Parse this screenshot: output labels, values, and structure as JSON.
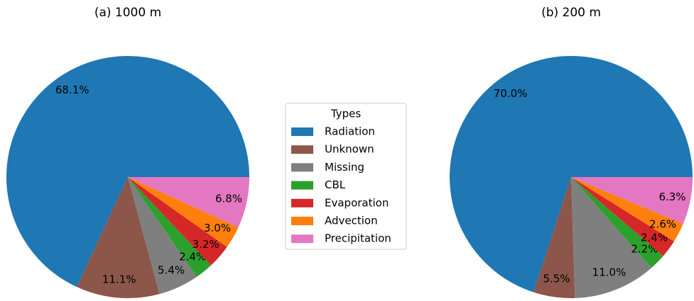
{
  "chart_data": [
    {
      "type": "pie",
      "title": "(a) 1000 m",
      "categories": [
        "Radiation",
        "Unknown",
        "Missing",
        "CBL",
        "Evaporation",
        "Advection",
        "Precipitation"
      ],
      "values": [
        68.1,
        11.1,
        5.4,
        2.4,
        3.2,
        3.0,
        6.8
      ],
      "value_labels": [
        "68.1%",
        "11.1%",
        "5.4%",
        "2.4%",
        "3.2%",
        "3.0%",
        "6.8%"
      ],
      "colors": [
        "#1f77b4",
        "#8c564b",
        "#7f7f7f",
        "#2ca02c",
        "#d62728",
        "#ff7f0e",
        "#e377c2"
      ],
      "legend_title": "Types"
    },
    {
      "type": "pie",
      "title": "(b) 200 m",
      "categories": [
        "Radiation",
        "Unknown",
        "Missing",
        "CBL",
        "Evaporation",
        "Advection",
        "Precipitation"
      ],
      "values": [
        70.0,
        5.5,
        11.0,
        2.2,
        2.4,
        2.6,
        6.3
      ],
      "value_labels": [
        "70.0%",
        "5.5%",
        "11.0%",
        "2.2%",
        "2.4%",
        "2.6%",
        "6.3%"
      ],
      "colors": [
        "#1f77b4",
        "#8c564b",
        "#7f7f7f",
        "#2ca02c",
        "#d62728",
        "#ff7f0e",
        "#e377c2"
      ]
    }
  ]
}
